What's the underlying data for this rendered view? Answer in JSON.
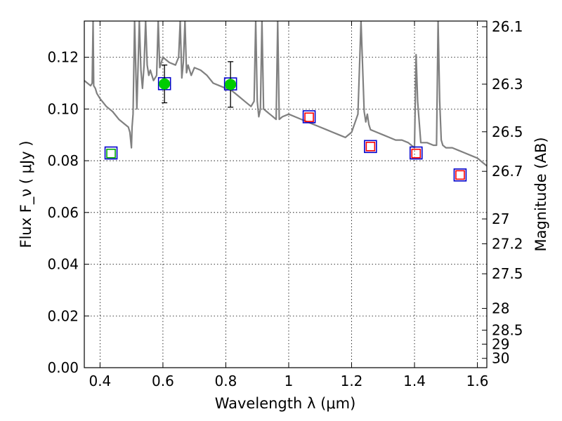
{
  "chart_data": {
    "type": "scatter",
    "xlabel": "Wavelength  λ (μm)",
    "ylabel": "Flux  F_ν  ( μJy )",
    "y2label": "Magnitude (AB)",
    "xlim": [
      0.35,
      1.63
    ],
    "ylim": [
      0.0,
      0.134
    ],
    "grid": true,
    "x_ticks": [
      0.4,
      0.6,
      0.8,
      1.0,
      1.2,
      1.4,
      1.6
    ],
    "x_tick_labels": [
      "0.4",
      "0.6",
      "0.8",
      "1",
      "1.2",
      "1.4",
      "1.6"
    ],
    "y_ticks": [
      0.0,
      0.02,
      0.04,
      0.06,
      0.08,
      0.1,
      0.12
    ],
    "y_tick_labels": [
      "0.00",
      "0.02",
      "0.04",
      "0.06",
      "0.08",
      "0.10",
      "0.12"
    ],
    "y2_ticks": [
      {
        "label": "26.1",
        "flux": 0.1318
      },
      {
        "label": "26.3",
        "flux": 0.1096
      },
      {
        "label": "26.5",
        "flux": 0.0912
      },
      {
        "label": "26.7",
        "flux": 0.0759
      },
      {
        "label": "27",
        "flux": 0.0575
      },
      {
        "label": "27.2",
        "flux": 0.0479
      },
      {
        "label": "27.5",
        "flux": 0.0363
      },
      {
        "label": "28",
        "flux": 0.0229
      },
      {
        "label": "28.5",
        "flux": 0.0145
      },
      {
        "label": "29",
        "flux": 0.0091
      },
      {
        "label": "30",
        "flux": 0.0036
      }
    ],
    "series": [
      {
        "style": "model-spectrum",
        "color": "#808080",
        "x": [
          0.35,
          0.36,
          0.37,
          0.375,
          0.378,
          0.38,
          0.385,
          0.39,
          0.4,
          0.42,
          0.44,
          0.46,
          0.48,
          0.49,
          0.495,
          0.5,
          0.502,
          0.505,
          0.51,
          0.515,
          0.517,
          0.52,
          0.525,
          0.53,
          0.535,
          0.54,
          0.545,
          0.55,
          0.555,
          0.56,
          0.57,
          0.58,
          0.585,
          0.59,
          0.6,
          0.62,
          0.64,
          0.65,
          0.655,
          0.66,
          0.665,
          0.67,
          0.675,
          0.68,
          0.69,
          0.7,
          0.72,
          0.74,
          0.76,
          0.78,
          0.8,
          0.82,
          0.84,
          0.86,
          0.88,
          0.89,
          0.895,
          0.9,
          0.905,
          0.91,
          0.915,
          0.92,
          0.93,
          0.94,
          0.95,
          0.96,
          0.965,
          0.97,
          0.98,
          1.0,
          1.02,
          1.04,
          1.06,
          1.08,
          1.1,
          1.12,
          1.14,
          1.16,
          1.18,
          1.2,
          1.22,
          1.23,
          1.24,
          1.245,
          1.25,
          1.255,
          1.26,
          1.28,
          1.3,
          1.32,
          1.34,
          1.36,
          1.38,
          1.39,
          1.4,
          1.405,
          1.41,
          1.42,
          1.44,
          1.46,
          1.47,
          1.475,
          1.48,
          1.485,
          1.49,
          1.5,
          1.52,
          1.54,
          1.56,
          1.58,
          1.6,
          1.62,
          1.63
        ],
        "y": [
          0.111,
          0.11,
          0.109,
          0.11,
          0.134,
          0.109,
          0.108,
          0.106,
          0.104,
          0.101,
          0.099,
          0.096,
          0.094,
          0.093,
          0.091,
          0.085,
          0.093,
          0.098,
          0.134,
          0.109,
          0.1,
          0.112,
          0.134,
          0.115,
          0.108,
          0.117,
          0.134,
          0.117,
          0.113,
          0.115,
          0.111,
          0.113,
          0.134,
          0.116,
          0.12,
          0.118,
          0.117,
          0.12,
          0.134,
          0.112,
          0.118,
          0.134,
          0.114,
          0.117,
          0.113,
          0.116,
          0.115,
          0.113,
          0.11,
          0.109,
          0.108,
          0.107,
          0.105,
          0.103,
          0.101,
          0.103,
          0.134,
          0.103,
          0.097,
          0.1,
          0.134,
          0.1,
          0.099,
          0.098,
          0.097,
          0.096,
          0.134,
          0.096,
          0.097,
          0.098,
          0.097,
          0.096,
          0.095,
          0.094,
          0.093,
          0.092,
          0.091,
          0.09,
          0.089,
          0.091,
          0.098,
          0.134,
          0.099,
          0.095,
          0.098,
          0.094,
          0.092,
          0.091,
          0.09,
          0.089,
          0.088,
          0.088,
          0.087,
          0.086,
          0.085,
          0.121,
          0.103,
          0.087,
          0.087,
          0.086,
          0.086,
          0.134,
          0.103,
          0.088,
          0.086,
          0.085,
          0.085,
          0.084,
          0.083,
          0.082,
          0.081,
          0.079,
          0.078
        ]
      },
      {
        "style": "model-photometry",
        "color": "#0000cc",
        "marker": "open-square",
        "x": [
          0.435,
          0.605,
          0.815,
          1.065,
          1.26,
          1.405,
          1.545
        ],
        "y": [
          0.083,
          0.1098,
          0.1097,
          0.097,
          0.0855,
          0.083,
          0.0745
        ]
      },
      {
        "style": "upper-limit-photometry",
        "color": "#ff0000",
        "marker": "small-open-square",
        "x": [
          1.065,
          1.26,
          1.405,
          1.545
        ],
        "y": [
          0.0968,
          0.0855,
          0.0828,
          0.0745
        ]
      },
      {
        "style": "photometry-limit",
        "color": "#00aa00",
        "marker": "small-open-square",
        "x": [
          0.435
        ],
        "y": [
          0.0828
        ]
      },
      {
        "style": "observed-photometry",
        "color": "#00cc00",
        "marker": "filled-circle",
        "x": [
          0.605,
          0.815
        ],
        "y": [
          0.1097,
          0.1095
        ],
        "yerr": [
          0.0073,
          0.0088
        ]
      }
    ]
  }
}
